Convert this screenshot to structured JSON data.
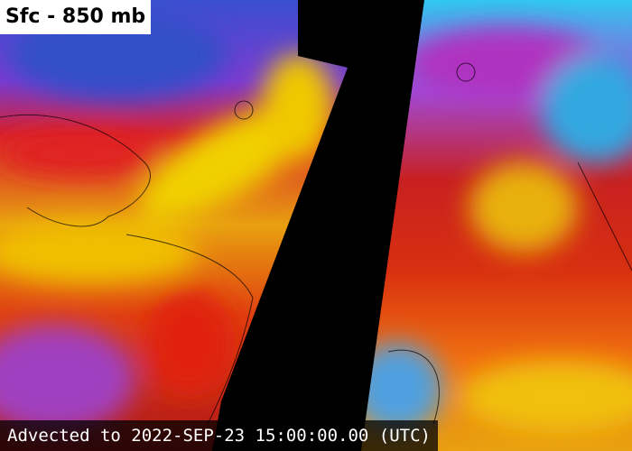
{
  "header": {
    "title": "Sfc - 850 mb"
  },
  "footer": {
    "timestamp": "Advected to 2022-SEP-23 15:00:00.00 (UTC)"
  }
}
